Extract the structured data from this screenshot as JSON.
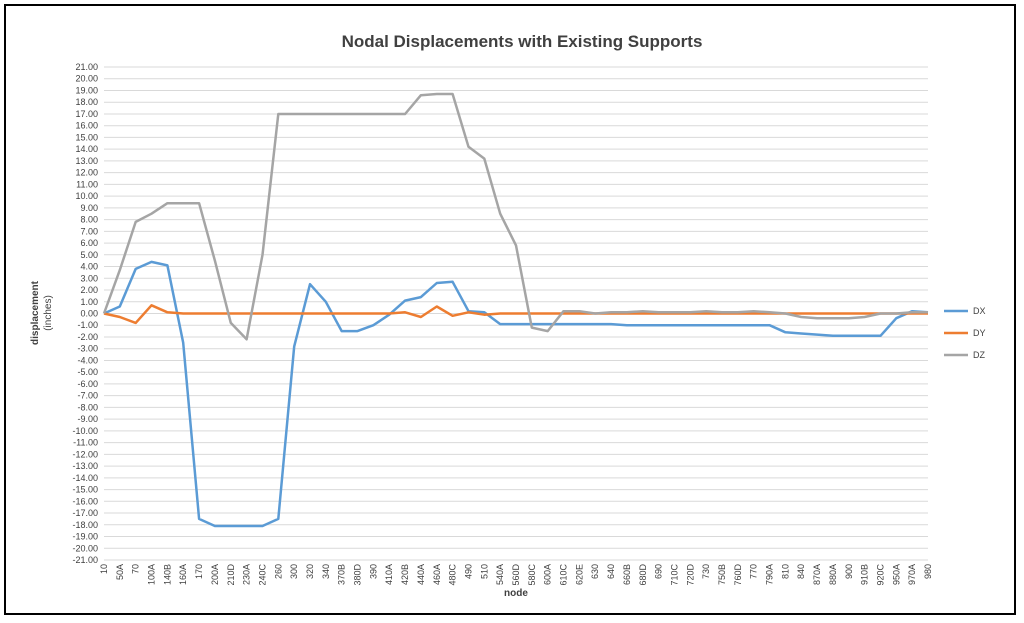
{
  "chart_data": {
    "type": "line",
    "title": "Nodal Displacements with Existing Supports",
    "xlabel": "node",
    "ylabel": "displacement",
    "ylabel_unit": "(inches)",
    "ylim": [
      -21,
      21
    ],
    "ytick_step": 1,
    "grid": true,
    "legend_position": "right",
    "categories": [
      "10",
      "50A",
      "70",
      "100A",
      "140B",
      "160A",
      "170",
      "200A",
      "210D",
      "230A",
      "240C",
      "260",
      "300",
      "320",
      "340",
      "370B",
      "380D",
      "390",
      "410A",
      "420B",
      "440A",
      "460A",
      "480C",
      "490",
      "510",
      "540A",
      "560D",
      "580C",
      "600A",
      "610C",
      "620E",
      "630",
      "640",
      "660B",
      "680D",
      "690",
      "710C",
      "720D",
      "730",
      "750B",
      "760D",
      "770",
      "790A",
      "810",
      "840",
      "870A",
      "880A",
      "900",
      "910B",
      "920C",
      "950A",
      "970A",
      "980"
    ],
    "series": [
      {
        "name": "DX",
        "color": "#5b9bd5",
        "values": [
          0,
          0.6,
          3.8,
          4.4,
          4.1,
          -2.5,
          -17.5,
          -18.1,
          -18.1,
          -18.1,
          -18.1,
          -17.5,
          -2.8,
          2.5,
          1.0,
          -1.5,
          -1.5,
          -1.0,
          -0.1,
          1.1,
          1.4,
          2.6,
          2.7,
          0.2,
          0.1,
          -0.9,
          -0.9,
          -0.9,
          -0.9,
          -0.9,
          -0.9,
          -0.9,
          -0.9,
          -1.0,
          -1.0,
          -1.0,
          -1.0,
          -1.0,
          -1.0,
          -1.0,
          -1.0,
          -1.0,
          -1.0,
          -1.6,
          -1.7,
          -1.8,
          -1.9,
          -1.9,
          -1.9,
          -1.9,
          -0.4,
          0.2,
          0.1
        ]
      },
      {
        "name": "DY",
        "color": "#ed7d31",
        "values": [
          0,
          -0.3,
          -0.8,
          0.7,
          0.1,
          0,
          0,
          0,
          0,
          0,
          0,
          0,
          0,
          0,
          0,
          0,
          0,
          0,
          0,
          0.1,
          -0.3,
          0.6,
          -0.2,
          0.1,
          -0.1,
          0,
          0,
          0,
          0,
          0,
          0,
          0,
          0,
          0,
          0,
          0,
          0,
          0,
          0,
          0,
          0,
          0,
          0,
          0,
          0,
          0,
          0,
          0,
          0,
          0,
          0,
          0,
          0
        ]
      },
      {
        "name": "DZ",
        "color": "#a5a5a5",
        "values": [
          0,
          3.7,
          7.8,
          8.5,
          9.4,
          9.4,
          9.4,
          4.5,
          -0.8,
          -2.2,
          5.0,
          17.0,
          17.0,
          17.0,
          17.0,
          17.0,
          17.0,
          17.0,
          17.0,
          17.0,
          18.6,
          18.7,
          18.7,
          14.2,
          13.2,
          8.5,
          5.8,
          -1.2,
          -1.5,
          0.2,
          0.2,
          0,
          0.1,
          0.1,
          0.2,
          0.1,
          0.1,
          0.1,
          0.2,
          0.1,
          0.1,
          0.2,
          0.1,
          0,
          -0.3,
          -0.4,
          -0.4,
          -0.4,
          -0.3,
          0,
          0,
          0.1,
          0.1
        ]
      }
    ]
  }
}
